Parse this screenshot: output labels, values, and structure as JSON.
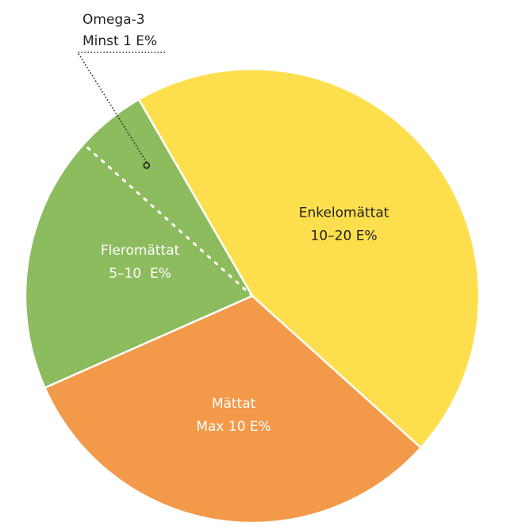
{
  "chart_data": {
    "type": "pie",
    "slices": [
      {
        "name": "Enkelomättat",
        "range": "10–20 E%",
        "value": 45,
        "color": "#fddf4e",
        "label_color": "#231f20"
      },
      {
        "name": "Mättat",
        "range": "Max 10 E%",
        "value": 31.7,
        "color": "#f2994a",
        "label_color": "#ffffff"
      },
      {
        "name": "Fleromättat",
        "range": "5–10  E%",
        "value": 23.3,
        "color": "#8cbc5e",
        "label_color": "#ffffff"
      }
    ],
    "sub_segment": {
      "of": "Fleromättat",
      "name": "Omega-3",
      "range": "Minst 1 E%",
      "value": 5,
      "line_color": "#ffffff",
      "leader_color": "#231f20"
    },
    "stroke_color": "#ffffff"
  }
}
